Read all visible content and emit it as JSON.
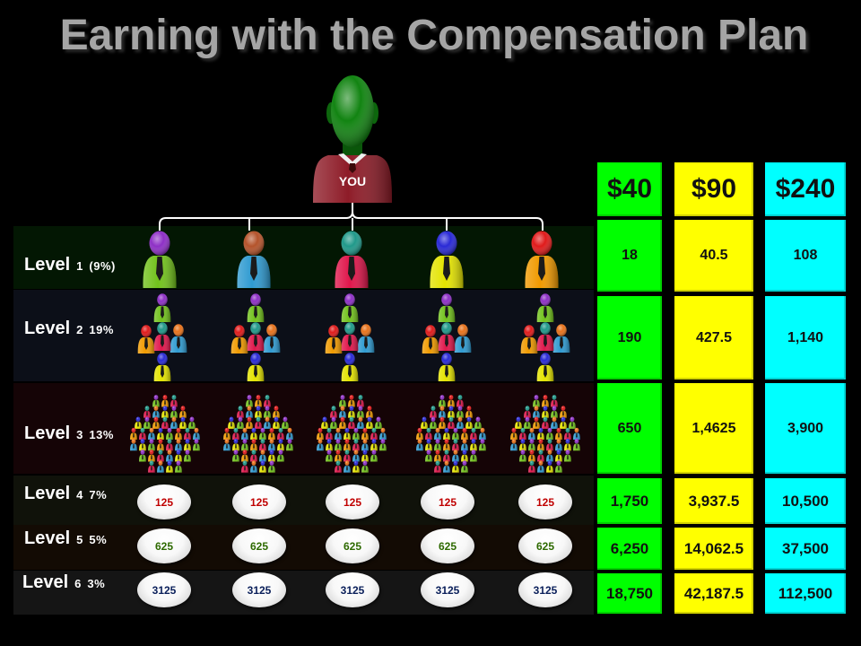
{
  "title": "Earning with the Compensation Plan",
  "you": {
    "label": "YOU"
  },
  "levels": [
    {
      "word": "Level",
      "number": "1",
      "percent": "(9%)"
    },
    {
      "word": "Level",
      "number": "2",
      "percent": "19%"
    },
    {
      "word": "Level",
      "number": "3",
      "percent": "13%"
    },
    {
      "word": "Level",
      "number": "4",
      "percent": "7%"
    },
    {
      "word": "Level",
      "number": "5",
      "percent": "5%"
    },
    {
      "word": "Level",
      "number": "6",
      "percent": "3%"
    }
  ],
  "member_counts": [
    {
      "text_color": "#c00000",
      "values": [
        "125",
        "125",
        "125",
        "125",
        "125"
      ]
    },
    {
      "text_color": "#2e6a00",
      "values": [
        "625",
        "625",
        "625",
        "625",
        "625"
      ]
    },
    {
      "text_color": "#0a1f5a",
      "values": [
        "3125",
        "3125",
        "3125",
        "3125",
        "3125"
      ]
    }
  ],
  "earnings": {
    "columns": [
      {
        "header": "$40",
        "color": "#00ff00",
        "values": [
          "18",
          "190",
          "650",
          "1,750",
          "6,250",
          "18,750"
        ]
      },
      {
        "header": "$90",
        "color": "#ffff00",
        "values": [
          "40.5",
          "427.5",
          "1,4625",
          "3,937.5",
          "14,062.5",
          "42,187.5"
        ]
      },
      {
        "header": "$240",
        "color": "#00ffff",
        "values": [
          "108",
          "1,140",
          "3,900",
          "10,500",
          "37,500",
          "112,500"
        ]
      }
    ]
  }
}
